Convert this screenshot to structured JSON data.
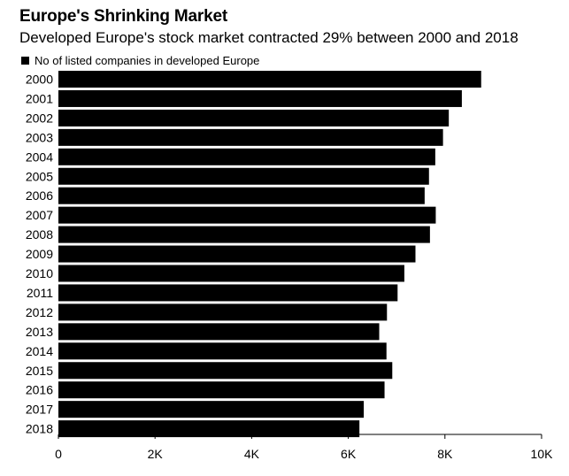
{
  "colors": {
    "bar": "#000000",
    "axis": "#000000",
    "text": "#000000"
  },
  "chart_data": {
    "type": "bar",
    "orientation": "horizontal",
    "title": "Europe's Shrinking Market",
    "subtitle": "Developed Europe's stock market contracted 29% between 2000 and 2018",
    "categories": [
      "2000",
      "2001",
      "2002",
      "2003",
      "2004",
      "2005",
      "2006",
      "2007",
      "2008",
      "2009",
      "2010",
      "2011",
      "2012",
      "2013",
      "2014",
      "2015",
      "2016",
      "2017",
      "2018"
    ],
    "series": [
      {
        "name": "No of listed companies in developed Europe",
        "values": [
          8750,
          8350,
          8080,
          7960,
          7800,
          7670,
          7580,
          7810,
          7690,
          7390,
          7160,
          7020,
          6800,
          6640,
          6790,
          6910,
          6750,
          6320,
          6230
        ]
      }
    ],
    "xlim": [
      0,
      10000
    ],
    "xticks": [
      0,
      2000,
      4000,
      6000,
      8000,
      10000
    ],
    "xtick_labels": [
      "0",
      "2K",
      "4K",
      "6K",
      "8K",
      "10K"
    ],
    "xlabel": "",
    "ylabel": "",
    "grid": false,
    "legend_position": "top-left"
  }
}
